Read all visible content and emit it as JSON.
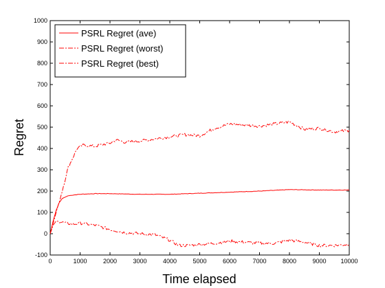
{
  "chart_data": {
    "type": "line",
    "title": "",
    "xlabel": "Time elapsed",
    "ylabel": "Regret",
    "xlim": [
      0,
      10000
    ],
    "ylim": [
      -100,
      1000
    ],
    "x_ticks": [
      0,
      1000,
      2000,
      3000,
      4000,
      5000,
      6000,
      7000,
      8000,
      9000,
      10000
    ],
    "y_ticks": [
      -100,
      0,
      100,
      200,
      300,
      400,
      500,
      600,
      700,
      800,
      900,
      1000
    ],
    "grid": false,
    "legend_position": "top-left",
    "series": [
      {
        "name": "PSRL Regret (ave)",
        "color": "#ff0000",
        "dash": "solid",
        "x": [
          0,
          100,
          200,
          300,
          400,
          600,
          800,
          1000,
          1500,
          2000,
          3000,
          4000,
          5000,
          6000,
          7000,
          8000,
          9000,
          10000
        ],
        "y": [
          0,
          60,
          110,
          145,
          165,
          178,
          182,
          185,
          188,
          188,
          185,
          185,
          190,
          195,
          200,
          207,
          205,
          205
        ]
      },
      {
        "name": "PSRL Regret (worst)",
        "color": "#ff0000",
        "dash": "dashdot",
        "x": [
          0,
          200,
          400,
          600,
          900,
          1100,
          1500,
          1800,
          2000,
          2200,
          2500,
          3000,
          3500,
          4000,
          4500,
          5000,
          5500,
          6000,
          6500,
          7000,
          7500,
          8000,
          8500,
          9000,
          9500,
          10000
        ],
        "y": [
          0,
          100,
          200,
          310,
          400,
          415,
          410,
          420,
          425,
          440,
          430,
          435,
          445,
          455,
          465,
          460,
          495,
          515,
          510,
          505,
          515,
          525,
          490,
          495,
          478,
          485
        ]
      },
      {
        "name": "PSRL Regret (best)",
        "color": "#ff0000",
        "dash": "dashdot",
        "x": [
          0,
          100,
          200,
          500,
          800,
          1000,
          1500,
          2000,
          2500,
          3000,
          3500,
          4000,
          4300,
          4600,
          5000,
          5500,
          6000,
          6500,
          7000,
          7500,
          8000,
          8500,
          9000,
          9500,
          10000
        ],
        "y": [
          0,
          40,
          60,
          50,
          45,
          50,
          40,
          20,
          5,
          0,
          -5,
          -30,
          -55,
          -55,
          -50,
          -45,
          -35,
          -40,
          -45,
          -45,
          -30,
          -40,
          -55,
          -55,
          -50
        ]
      }
    ]
  }
}
